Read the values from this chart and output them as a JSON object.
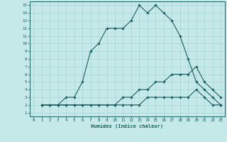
{
  "xlabel": "Humidex (Indice chaleur)",
  "ylabel": "",
  "bg_color": "#c5e8e8",
  "grid_color": "#a8d4d4",
  "line_color": "#1a6060",
  "xlim": [
    -0.5,
    23.5
  ],
  "ylim": [
    0.5,
    15.5
  ],
  "xticks": [
    0,
    1,
    2,
    3,
    4,
    5,
    6,
    7,
    8,
    9,
    10,
    11,
    12,
    13,
    14,
    15,
    16,
    17,
    18,
    19,
    20,
    21,
    22,
    23
  ],
  "yticks": [
    1,
    2,
    3,
    4,
    5,
    6,
    7,
    8,
    9,
    10,
    11,
    12,
    13,
    14,
    15
  ],
  "line1_x": [
    1,
    2,
    3,
    4,
    5,
    6,
    7,
    8,
    9,
    10,
    11,
    12,
    13,
    14,
    15,
    16,
    17,
    18,
    19,
    20,
    21,
    22,
    23
  ],
  "line1_y": [
    2,
    2,
    2,
    3,
    3,
    5,
    9,
    10,
    12,
    12,
    12,
    13,
    15,
    14,
    15,
    14,
    13,
    11,
    8,
    5,
    4,
    3,
    2
  ],
  "line2_x": [
    1,
    2,
    3,
    4,
    5,
    6,
    7,
    8,
    9,
    10,
    11,
    12,
    13,
    14,
    15,
    16,
    17,
    18,
    19,
    20,
    21,
    22,
    23
  ],
  "line2_y": [
    2,
    2,
    2,
    2,
    2,
    2,
    2,
    2,
    2,
    2,
    3,
    3,
    4,
    4,
    5,
    5,
    6,
    6,
    6,
    7,
    5,
    4,
    3
  ],
  "line3_x": [
    1,
    2,
    3,
    4,
    5,
    6,
    7,
    8,
    9,
    10,
    11,
    12,
    13,
    14,
    15,
    16,
    17,
    18,
    19,
    20,
    21,
    22,
    23
  ],
  "line3_y": [
    2,
    2,
    2,
    2,
    2,
    2,
    2,
    2,
    2,
    2,
    2,
    2,
    2,
    3,
    3,
    3,
    3,
    3,
    3,
    4,
    3,
    2,
    2
  ]
}
